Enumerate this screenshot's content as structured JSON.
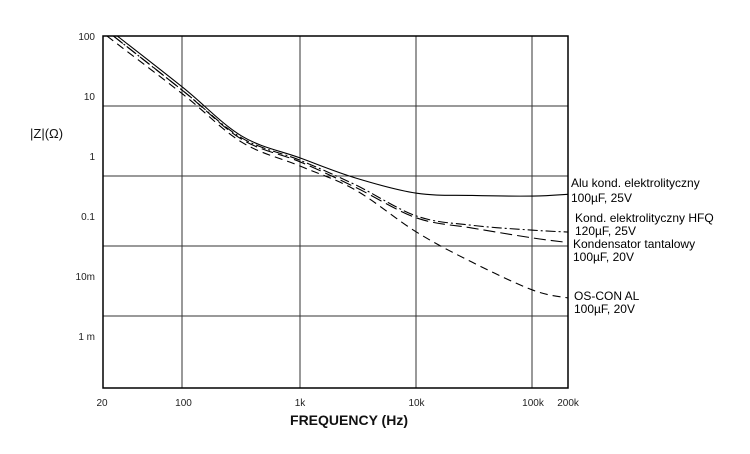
{
  "chart_data": {
    "type": "line",
    "title": "",
    "xlabel": "FREQUENCY (Hz)",
    "ylabel": "|Z|(Ω)",
    "xscale": "log",
    "yscale": "log",
    "xlim": [
      20,
      200000
    ],
    "ylim": [
      0.0001,
      100
    ],
    "grid": true,
    "x_ticks": [
      {
        "value": 20,
        "label": "20"
      },
      {
        "value": 100,
        "label": "100"
      },
      {
        "value": 1000,
        "label": "1k"
      },
      {
        "value": 10000,
        "label": "10k"
      },
      {
        "value": 100000,
        "label": "100k"
      },
      {
        "value": 200000,
        "label": "200k"
      }
    ],
    "y_ticks": [
      {
        "value": 100,
        "label": "100"
      },
      {
        "value": 10,
        "label": "10"
      },
      {
        "value": 1,
        "label": "1"
      },
      {
        "value": 0.1,
        "label": "0.1"
      },
      {
        "value": 0.01,
        "label": "10m"
      },
      {
        "value": 0.001,
        "label": "1 m"
      }
    ],
    "series": [
      {
        "name": "Alu kond. elektrolityczny",
        "spec": "100µF, 25V",
        "style": "solid",
        "x": [
          27,
          100,
          316,
          1000,
          3000,
          10000,
          30000,
          100000,
          200000
        ],
        "y": [
          100,
          13.6,
          2.15,
          0.93,
          0.43,
          0.24,
          0.22,
          0.215,
          0.23
        ]
      },
      {
        "name": "Kond. elektrolityczny HFQ",
        "spec": "120µF, 25V",
        "style": "dash-dot",
        "x": [
          25,
          100,
          316,
          1000,
          3000,
          10000,
          30000,
          100000,
          200000
        ],
        "y": [
          100,
          12,
          2.0,
          0.85,
          0.33,
          0.1,
          0.07,
          0.058,
          0.054
        ]
      },
      {
        "name": "Kondensator tantalowy",
        "spec": "100µF, 20V",
        "style": "long-dash",
        "x": [
          25,
          100,
          316,
          1000,
          3000,
          10000,
          30000,
          100000,
          180000
        ],
        "y": [
          100,
          12,
          1.9,
          0.8,
          0.3,
          0.093,
          0.063,
          0.043,
          0.037
        ]
      },
      {
        "name": "OS-CON AL",
        "spec": "100µF, 20V",
        "style": "dash",
        "x": [
          22,
          100,
          316,
          1000,
          3000,
          10000,
          30000,
          100000,
          200000
        ],
        "y": [
          100,
          10.5,
          1.7,
          0.68,
          0.27,
          0.054,
          0.017,
          0.0058,
          0.0043
        ]
      }
    ]
  }
}
